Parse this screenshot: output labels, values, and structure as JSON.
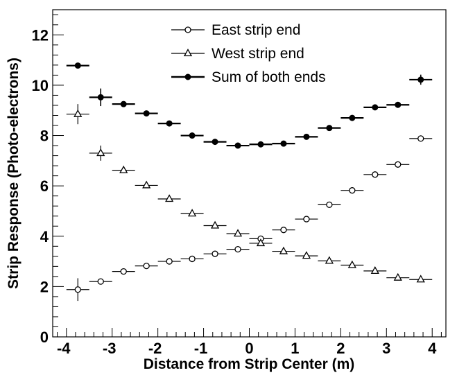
{
  "chart_data": {
    "type": "scatter",
    "xlabel": "Distance from Strip Center (m)",
    "ylabel": "Strip Response (Photo-electrons)",
    "xlim": [
      -4.3,
      4.3
    ],
    "ylim": [
      0,
      13
    ],
    "xticks": [
      "-4",
      "-3",
      "-2",
      "-1",
      "0",
      "1",
      "2",
      "3",
      "4"
    ],
    "yticks": [
      "0",
      "2",
      "4",
      "6",
      "8",
      "10",
      "12"
    ],
    "grid": false,
    "legend_position": "top-center",
    "x_halfwidth": 0.25,
    "series": [
      {
        "name": "East strip end",
        "marker": "open-circle",
        "x": [
          -3.75,
          -3.25,
          -2.75,
          -2.25,
          -1.75,
          -1.25,
          -0.75,
          -0.25,
          0.25,
          0.75,
          1.25,
          1.75,
          2.25,
          2.75,
          3.25,
          3.75
        ],
        "y": [
          1.88,
          2.2,
          2.6,
          2.82,
          3.0,
          3.1,
          3.3,
          3.48,
          3.9,
          4.25,
          4.68,
          5.25,
          5.82,
          6.45,
          6.85,
          7.88
        ],
        "yerr": [
          0.45,
          0.08,
          0.08,
          0.06,
          0.06,
          0.06,
          0.06,
          0.06,
          0.08,
          0.06,
          0.06,
          0.06,
          0.06,
          0.06,
          0.08,
          0.1
        ]
      },
      {
        "name": "West strip end",
        "marker": "open-triangle",
        "x": [
          -3.75,
          -3.25,
          -2.75,
          -2.25,
          -1.75,
          -1.25,
          -0.75,
          -0.25,
          0.25,
          0.75,
          1.25,
          1.75,
          2.25,
          2.75,
          3.25,
          3.75
        ],
        "y": [
          8.85,
          7.3,
          6.62,
          6.02,
          5.48,
          4.9,
          4.42,
          4.1,
          3.72,
          3.4,
          3.22,
          3.02,
          2.85,
          2.62,
          2.35,
          2.28
        ],
        "yerr": [
          0.4,
          0.3,
          0.08,
          0.06,
          0.06,
          0.06,
          0.06,
          0.06,
          0.08,
          0.06,
          0.06,
          0.06,
          0.06,
          0.06,
          0.06,
          0.06
        ]
      },
      {
        "name": "Sum of both ends",
        "marker": "filled-circle",
        "x": [
          -3.75,
          -3.25,
          -2.75,
          -2.25,
          -1.75,
          -1.25,
          -0.75,
          -0.25,
          0.25,
          0.75,
          1.25,
          1.75,
          2.25,
          2.75,
          3.25,
          3.75
        ],
        "y": [
          10.78,
          9.52,
          9.25,
          8.88,
          8.48,
          8.0,
          7.75,
          7.6,
          7.65,
          7.68,
          7.95,
          8.3,
          8.7,
          9.12,
          9.22,
          10.22
        ],
        "yerr": [
          0.06,
          0.35,
          0.06,
          0.06,
          0.06,
          0.06,
          0.06,
          0.06,
          0.06,
          0.06,
          0.06,
          0.06,
          0.06,
          0.06,
          0.06,
          0.2
        ]
      }
    ]
  },
  "colors": {
    "line": "#000000",
    "background": "#ffffff"
  }
}
